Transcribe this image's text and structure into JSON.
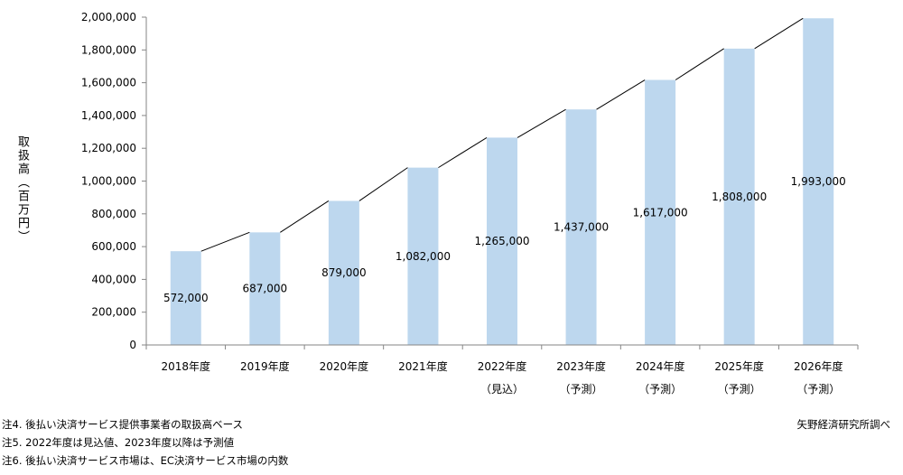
{
  "chart_data": {
    "type": "bar",
    "ylabel": "取扱高（百万円）",
    "ylim": [
      0,
      2000000
    ],
    "yticks": [
      "0",
      "200,000",
      "400,000",
      "600,000",
      "800,000",
      "1,000,000",
      "1,200,000",
      "1,400,000",
      "1,600,000",
      "1,800,000",
      "2,000,000"
    ],
    "grid": false,
    "categories": [
      {
        "year": "2018年度",
        "sub": ""
      },
      {
        "year": "2019年度",
        "sub": ""
      },
      {
        "year": "2020年度",
        "sub": ""
      },
      {
        "year": "2021年度",
        "sub": ""
      },
      {
        "year": "2022年度",
        "sub": "（見込）"
      },
      {
        "year": "2023年度",
        "sub": "（予測）"
      },
      {
        "year": "2024年度",
        "sub": "（予測）"
      },
      {
        "year": "2025年度",
        "sub": "（予測）"
      },
      {
        "year": "2026年度",
        "sub": "（予測）"
      }
    ],
    "values": [
      572000,
      687000,
      879000,
      1082000,
      1265000,
      1437000,
      1617000,
      1808000,
      1993000
    ],
    "value_labels": [
      "572,000",
      "687,000",
      "879,000",
      "1,082,000",
      "1,265,000",
      "1,437,000",
      "1,617,000",
      "1,808,000",
      "1,993,000"
    ],
    "bar_color": "#bdd7ee",
    "trend_line_color": "#000000"
  },
  "notes": [
    "注4. 後払い決済サービス提供事業者の取扱高ベース",
    "注5. 2022年度は見込値、2023年度以降は予測値",
    "注6. 後払い決済サービス市場は、EC決済サービス市場の内数"
  ],
  "credit": "矢野経済研究所調べ"
}
